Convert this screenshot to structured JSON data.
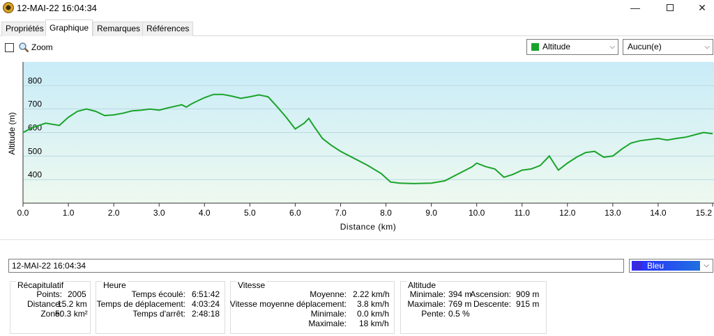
{
  "window": {
    "title": "12-MAI-22 16:04:34",
    "minimize": "—",
    "close": "✕"
  },
  "tabs": [
    {
      "label": "Propriétés"
    },
    {
      "label": "Graphique"
    },
    {
      "label": "Remarques"
    },
    {
      "label": "Références"
    }
  ],
  "toolbar": {
    "zoom_label": "Zoom",
    "zoom_checked": false,
    "y_series_select": "Altitude",
    "y_series_color": "#1aa32a",
    "secondary_select": "Aucun(e)"
  },
  "chart_data": {
    "type": "area",
    "xlabel": "Distance  (km)",
    "ylabel": "Altitude (m)",
    "xlim": [
      0,
      15.2
    ],
    "ylim": [
      300,
      900
    ],
    "xticks": [
      "0.0",
      "1.0",
      "2.0",
      "3.0",
      "4.0",
      "5.0",
      "6.0",
      "7.0",
      "8.0",
      "9.0",
      "10.0",
      "11.0",
      "12.0",
      "13.0",
      "14.0",
      "15.2"
    ],
    "xtick_values": [
      0,
      1,
      2,
      3,
      4,
      5,
      6,
      7,
      8,
      9,
      10,
      11,
      12,
      13,
      14,
      15.2
    ],
    "yticks": [
      "400",
      "500",
      "600",
      "700",
      "800"
    ],
    "ytick_values": [
      400,
      500,
      600,
      700,
      800
    ],
    "grid": true,
    "line_color": "#1aa32a",
    "x": [
      0,
      0.2,
      0.5,
      0.8,
      1.0,
      1.2,
      1.4,
      1.6,
      1.8,
      2.0,
      2.2,
      2.4,
      2.6,
      2.8,
      3.0,
      3.2,
      3.5,
      3.6,
      3.7,
      3.8,
      4.0,
      4.2,
      4.4,
      4.6,
      4.8,
      5.0,
      5.2,
      5.4,
      5.6,
      5.8,
      6.0,
      6.2,
      6.3,
      6.4,
      6.6,
      6.8,
      7.0,
      7.3,
      7.6,
      7.9,
      8.1,
      8.3,
      8.6,
      9.0,
      9.3,
      9.6,
      9.9,
      10.0,
      10.2,
      10.4,
      10.6,
      10.8,
      11.0,
      11.2,
      11.4,
      11.6,
      11.7,
      11.8,
      12.0,
      12.2,
      12.4,
      12.6,
      12.8,
      13.0,
      13.2,
      13.4,
      13.6,
      13.8,
      14.0,
      14.2,
      14.4,
      14.6,
      14.8,
      15.0,
      15.2
    ],
    "y": [
      600,
      620,
      640,
      630,
      665,
      690,
      700,
      690,
      672,
      675,
      682,
      692,
      695,
      700,
      695,
      705,
      718,
      708,
      720,
      730,
      748,
      762,
      762,
      755,
      745,
      752,
      760,
      752,
      710,
      665,
      615,
      640,
      660,
      630,
      575,
      545,
      520,
      490,
      460,
      425,
      390,
      385,
      383,
      385,
      395,
      425,
      455,
      470,
      455,
      445,
      410,
      422,
      440,
      445,
      460,
      500,
      470,
      440,
      470,
      495,
      515,
      520,
      495,
      500,
      530,
      555,
      565,
      570,
      575,
      568,
      575,
      580,
      590,
      600,
      595
    ]
  },
  "details": {
    "track_name": "12-MAI-22 16:04:34",
    "color": "Bleu"
  },
  "summary": {
    "title": "Récapitulatif",
    "rows": [
      {
        "label": "Points:",
        "value": "2005"
      },
      {
        "label": "Distance:",
        "value": "15.2 km"
      },
      {
        "label": "Zone:",
        "value": "50.3 km²"
      }
    ]
  },
  "time": {
    "title": "Heure",
    "rows": [
      {
        "label": "Temps écoulé:",
        "value": "6:51:42"
      },
      {
        "label": "Temps de déplacement:",
        "value": "4:03:24"
      },
      {
        "label": "Temps d'arrêt:",
        "value": "2:48:18"
      }
    ]
  },
  "speed": {
    "title": "Vitesse",
    "rows": [
      {
        "label": "Moyenne:",
        "value": "2.22 km/h"
      },
      {
        "label": "Vitesse moyenne déplacement:",
        "value": "3.8 km/h"
      },
      {
        "label": "Minimale:",
        "value": "0.0 km/h"
      },
      {
        "label": "Maximale:",
        "value": "18 km/h"
      }
    ]
  },
  "altitude": {
    "title": "Altitude",
    "rows": [
      {
        "label": "Minimale:",
        "value": "394 m"
      },
      {
        "label": "Maximale:",
        "value": "769 m"
      },
      {
        "label": "Pente:",
        "value": "0.5 %"
      }
    ],
    "rows2": [
      {
        "label": "Ascension:",
        "value": "909 m"
      },
      {
        "label": "Descente:",
        "value": "915 m"
      }
    ]
  }
}
